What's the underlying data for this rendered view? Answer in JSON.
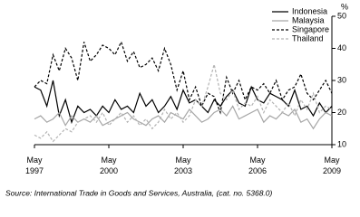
{
  "chart_data": {
    "type": "line",
    "y_label": "%",
    "source": "Source: International Trade in Goods and Services, Australia, (cat. no. 5368.0)",
    "x": [
      "1997-05",
      "1997-08",
      "1997-11",
      "1998-02",
      "1998-05",
      "1998-08",
      "1998-11",
      "1999-02",
      "1999-05",
      "1999-08",
      "1999-11",
      "2000-02",
      "2000-05",
      "2000-08",
      "2000-11",
      "2001-02",
      "2001-05",
      "2001-08",
      "2001-11",
      "2002-02",
      "2002-05",
      "2002-08",
      "2002-11",
      "2003-02",
      "2003-05",
      "2003-08",
      "2003-11",
      "2004-02",
      "2004-05",
      "2004-08",
      "2004-11",
      "2005-02",
      "2005-05",
      "2005-08",
      "2005-11",
      "2006-02",
      "2006-05",
      "2006-08",
      "2006-11",
      "2007-02",
      "2007-05",
      "2007-08",
      "2007-11",
      "2008-02",
      "2008-05",
      "2008-08",
      "2008-11",
      "2009-02",
      "2009-05"
    ],
    "xlim": [
      "1997-05",
      "2009-05"
    ],
    "xticks": [
      {
        "value": "1997-05",
        "label": "May 1997"
      },
      {
        "value": "2000-05",
        "label": "May 2000"
      },
      {
        "value": "2003-05",
        "label": "May 2003"
      },
      {
        "value": "2006-05",
        "label": "May 2006"
      },
      {
        "value": "2009-05",
        "label": "May 2009"
      }
    ],
    "ylim": [
      10,
      50
    ],
    "yticks": [
      10,
      20,
      30,
      40,
      50
    ],
    "legend": "top-right",
    "series": [
      {
        "name": "Indonesia",
        "color": "#000000",
        "style": "solid",
        "values": [
          28,
          27,
          22,
          30,
          19,
          24,
          17,
          22,
          20,
          21,
          19,
          22,
          20,
          24,
          21,
          22,
          20,
          26,
          22,
          24,
          20,
          22,
          25,
          21,
          27,
          23,
          24,
          22,
          20,
          24,
          22,
          25,
          27,
          23,
          22,
          28,
          24,
          23,
          26,
          25,
          24,
          22,
          27,
          21,
          22,
          19,
          23,
          20,
          22
        ]
      },
      {
        "name": "Malaysia",
        "color": "#a6a6a6",
        "style": "solid",
        "values": [
          18,
          19,
          17,
          18,
          20,
          16,
          19,
          17,
          18,
          17,
          19,
          16,
          17,
          18,
          19,
          20,
          18,
          17,
          16,
          18,
          19,
          17,
          20,
          19,
          18,
          21,
          19,
          17,
          18,
          20,
          21,
          19,
          22,
          18,
          19,
          20,
          21,
          17,
          19,
          18,
          20,
          19,
          21,
          17,
          18,
          15,
          18,
          20,
          19
        ]
      },
      {
        "name": "Singapore",
        "color": "#000000",
        "style": "dashed",
        "values": [
          28,
          30,
          29,
          38,
          33,
          40,
          37,
          30,
          42,
          36,
          38,
          41,
          40,
          38,
          42,
          36,
          39,
          34,
          35,
          37,
          33,
          40,
          35,
          27,
          33,
          24,
          28,
          22,
          26,
          25,
          20,
          31,
          26,
          30,
          24,
          28,
          27,
          29,
          26,
          30,
          24,
          27,
          28,
          32,
          26,
          24,
          27,
          30,
          26
        ]
      },
      {
        "name": "Thailand",
        "color": "#b3b3b3",
        "style": "dashed",
        "values": [
          13,
          12,
          14,
          11,
          13,
          15,
          14,
          17,
          18,
          19,
          17,
          20,
          16,
          18,
          20,
          17,
          19,
          16,
          18,
          15,
          17,
          21,
          18,
          20,
          17,
          19,
          24,
          22,
          28,
          35,
          26,
          24,
          27,
          21,
          23,
          22,
          25,
          20,
          24,
          22,
          20,
          23,
          19,
          24,
          21,
          26,
          20,
          22,
          21
        ]
      }
    ]
  }
}
